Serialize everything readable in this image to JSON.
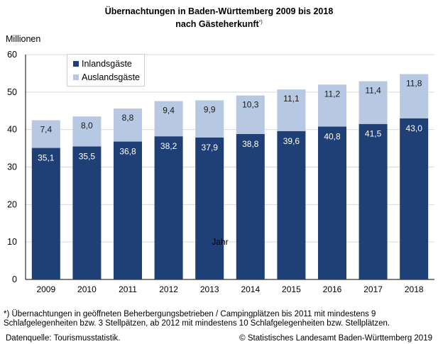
{
  "title_line1": "Übernachtungen in Baden-Württemberg 2009 bis 2018",
  "title_line2": "nach Gästeherkunft",
  "title_mark": "*)",
  "footnote_line1": "*) Übernachtungen in geöffneten Beherbergungsbetrieben / Campingplätzen bis 2011 mit mindestens 9",
  "footnote_line2": "Schlafgelegenheiten bzw. 3 Stellpätzen, ab 2012 mit mindestens 10 Schlafgelegenheiten bzw. Stellplätzen.",
  "source": "Datenquelle: Tourismusstatistik.",
  "copyright": "© Statistisches Landesamt Baden-Württemberg 2019",
  "colors": {
    "domestic": "#1f3f77",
    "foreign": "#b6c8e2",
    "grid": "#d9d9d9"
  },
  "chart_data": {
    "type": "bar",
    "stacked": true,
    "title": "Übernachtungen in Baden-Württemberg 2009 bis 2018 nach Gästeherkunft",
    "xlabel": "Jahr",
    "ylabel": "Millionen",
    "ylim": [
      0,
      60
    ],
    "yticks": [
      0,
      10,
      20,
      30,
      40,
      50,
      60
    ],
    "grid": true,
    "legend_position": "top-left",
    "categories": [
      "2009",
      "2010",
      "2011",
      "2012",
      "2013",
      "2014",
      "2015",
      "2016",
      "2017",
      "2018"
    ],
    "series": [
      {
        "name": "Inlandsgäste",
        "values": [
          35.1,
          35.5,
          36.8,
          38.2,
          37.9,
          38.8,
          39.6,
          40.8,
          41.5,
          43.0
        ],
        "labels": [
          "35,1",
          "35,5",
          "36,8",
          "38,2",
          "37,9",
          "38,8",
          "39,6",
          "40,8",
          "41,5",
          "43,0"
        ]
      },
      {
        "name": "Auslandsgäste",
        "values": [
          7.4,
          8.0,
          8.8,
          9.4,
          9.9,
          10.3,
          11.1,
          11.2,
          11.4,
          11.8
        ],
        "labels": [
          "7,4",
          "8,0",
          "8,8",
          "9,4",
          "9,9",
          "10,3",
          "11,1",
          "11,2",
          "11,4",
          "11,8"
        ]
      }
    ]
  }
}
